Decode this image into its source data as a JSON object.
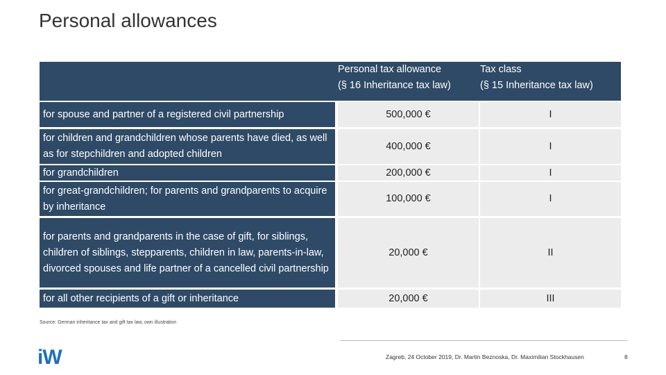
{
  "header": {
    "title": "Personal allowances"
  },
  "table": {
    "columns": [
      [
        "Personal tax allowance",
        "(§ 16 Inheritance tax law)"
      ],
      [
        "Tax class",
        "(§ 15 Inheritance tax law)"
      ]
    ],
    "rows": [
      [
        "for spouse and partner of a registered civil partnership",
        "500,000 €",
        "I"
      ],
      [
        "for children and grandchildren whose parents have died, as well as for stepchildren and adopted children",
        "400,000 €",
        "I"
      ],
      [
        "for grandchildren",
        "200,000 €",
        "I"
      ],
      [
        "for great-grandchildren; for parents and grandparents to acquire by inheritance",
        "100,000 €",
        "I"
      ],
      [
        "for parents and grandparents in the case of gift, for siblings, children of siblings, stepparents, children in law, parents-in-law, divorced spouses and life partner of a cancelled civil partnership",
        "20,000 €",
        "II"
      ],
      [
        "for all other recipients of a gift or inheritance",
        "20,000 €",
        "III"
      ]
    ]
  },
  "source": "Source: German inheritance tax and gift tax law, own illustration",
  "footer": {
    "logo": "iW",
    "text": "Zagreb, 24 October 2019, Dr. Martin Beznoska, Dr. Maximilian Stockhausen",
    "page": "8"
  }
}
